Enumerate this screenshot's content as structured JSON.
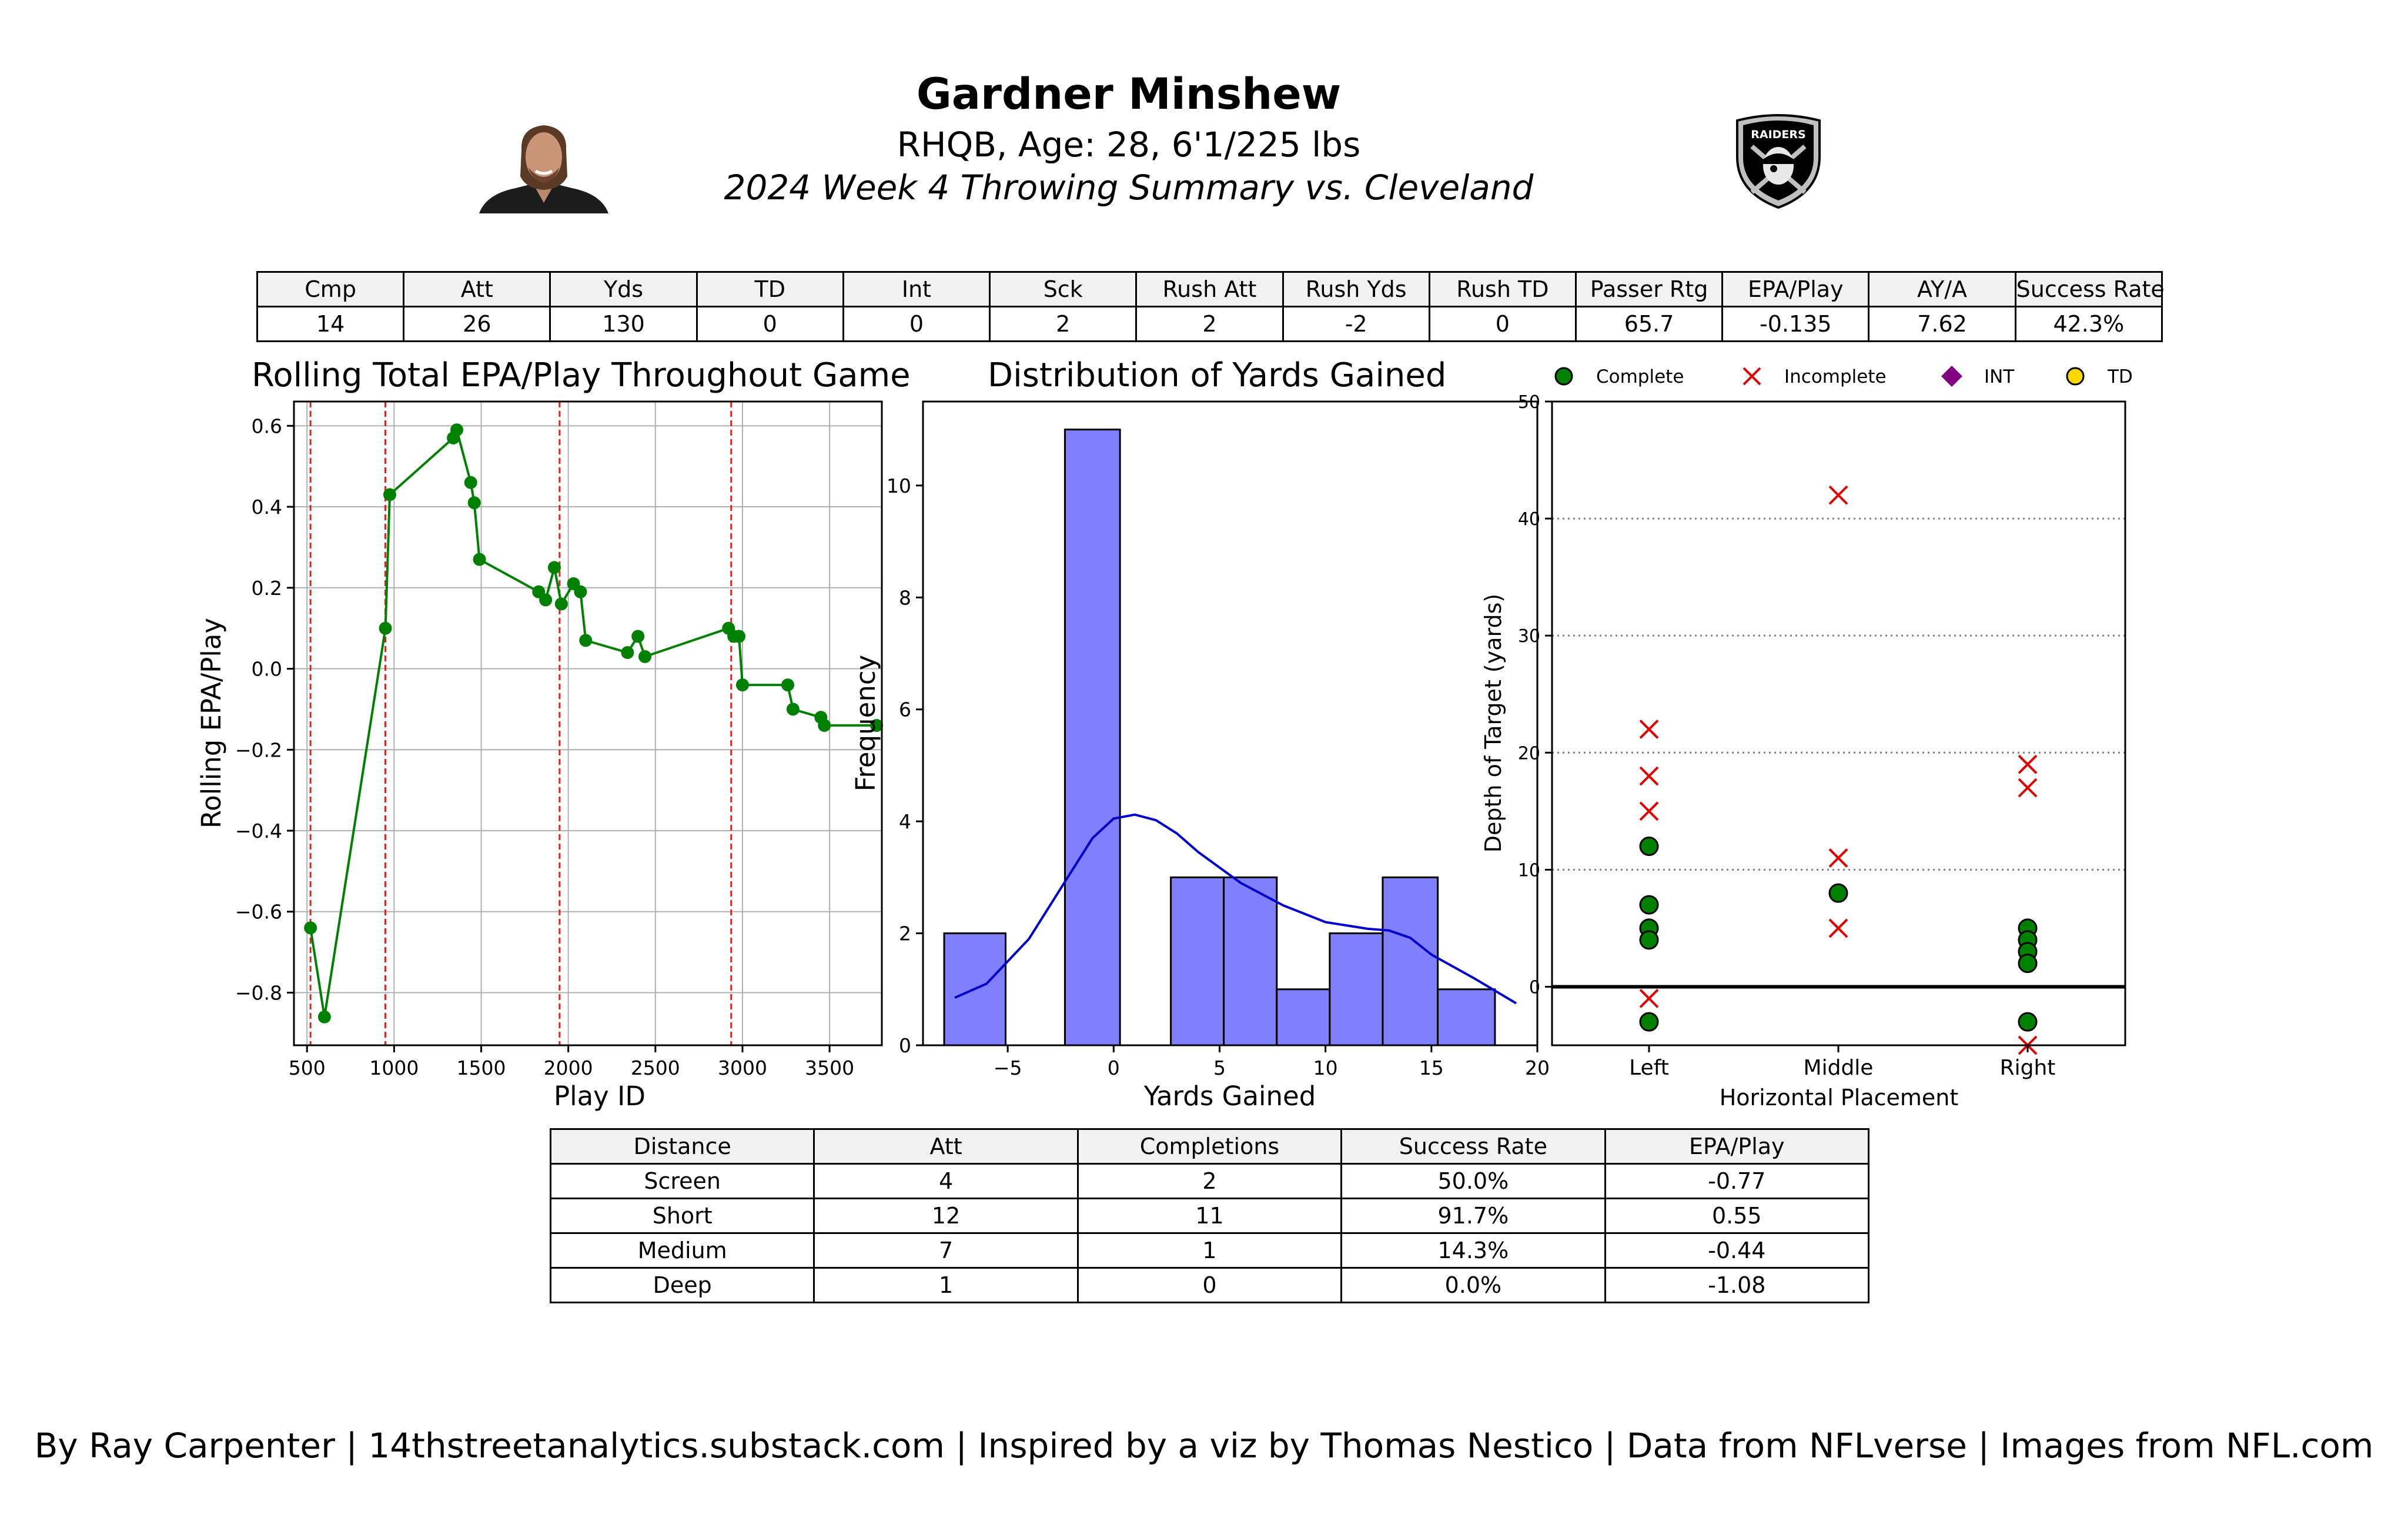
{
  "header": {
    "name": "Gardner Minshew",
    "subtitle": "RHQB, Age: 28, 6'1/225 lbs",
    "title": "2024 Week 4 Throwing Summary vs. Cleveland",
    "logo_text": "RAIDERS"
  },
  "summary_table": {
    "columns": [
      "Cmp",
      "Att",
      "Yds",
      "TD",
      "Int",
      "Sck",
      "Rush Att",
      "Rush Yds",
      "Rush TD",
      "Passer Rtg",
      "EPA/Play",
      "AY/A",
      "Success Rate"
    ],
    "values": [
      "14",
      "26",
      "130",
      "0",
      "0",
      "2",
      "2",
      "-2",
      "0",
      "65.7",
      "-0.135",
      "7.62",
      "42.3%"
    ]
  },
  "distance_table": {
    "columns": [
      "Distance",
      "Att",
      "Completions",
      "Success Rate",
      "EPA/Play"
    ],
    "rows": [
      [
        "Screen",
        "4",
        "2",
        "50.0%",
        "-0.77"
      ],
      [
        "Short",
        "12",
        "11",
        "91.7%",
        "0.55"
      ],
      [
        "Medium",
        "7",
        "1",
        "14.3%",
        "-0.44"
      ],
      [
        "Deep",
        "1",
        "0",
        "0.0%",
        "-1.08"
      ]
    ]
  },
  "chart_data": [
    {
      "type": "line",
      "title": "Rolling Total EPA/Play Throughout Game",
      "xlabel": "Play ID",
      "ylabel": "Rolling EPA/Play",
      "xlim": [
        425,
        3800
      ],
      "ylim": [
        -0.93,
        0.66
      ],
      "xticks": [
        500,
        1000,
        1500,
        2000,
        2500,
        3000,
        3500
      ],
      "yticks": [
        -0.8,
        -0.6,
        -0.4,
        -0.2,
        0.0,
        0.2,
        0.4,
        0.6
      ],
      "ytick_labels": [
        "−0.8",
        "−0.6",
        "−0.4",
        "−0.2",
        "0.0",
        "0.2",
        "0.4",
        "0.6"
      ],
      "grid": true,
      "color": "#008000",
      "quarter_lines": [
        520,
        950,
        1950,
        2935
      ],
      "quarter_line_color": "#d62728",
      "x": [
        520,
        600,
        950,
        975,
        1340,
        1360,
        1440,
        1460,
        1490,
        1830,
        1870,
        1920,
        1960,
        2030,
        2070,
        2100,
        2340,
        2400,
        2440,
        2920,
        2950,
        2980,
        3000,
        3260,
        3290,
        3450,
        3470,
        3770
      ],
      "y": [
        -0.64,
        -0.86,
        0.1,
        0.43,
        0.57,
        0.59,
        0.46,
        0.41,
        0.27,
        0.19,
        0.17,
        0.25,
        0.16,
        0.21,
        0.19,
        0.07,
        0.04,
        0.08,
        0.03,
        0.1,
        0.08,
        0.08,
        -0.04,
        -0.04,
        -0.1,
        -0.12,
        -0.14,
        -0.14
      ]
    },
    {
      "type": "histogram",
      "title": "Distribution of Yards Gained",
      "xlabel": "Yards Gained",
      "ylabel": "Frequency",
      "xlim": [
        -9,
        20
      ],
      "ylim": [
        0,
        11.5
      ],
      "xticks": [
        -5,
        0,
        5,
        10,
        15,
        20
      ],
      "xtick_labels": [
        "−5",
        "0",
        "5",
        "10",
        "15",
        "20"
      ],
      "yticks": [
        0,
        2,
        4,
        6,
        8,
        10
      ],
      "bar_color": "#8080ff",
      "kde_color": "#0000cc",
      "bins": [
        {
          "x0": -8,
          "x1": -5.1,
          "count": 2
        },
        {
          "x0": -5.1,
          "x1": -2.3,
          "count": 0
        },
        {
          "x0": -2.3,
          "x1": 0.3,
          "count": 11
        },
        {
          "x0": 0.3,
          "x1": 2.7,
          "count": 0
        },
        {
          "x0": 2.7,
          "x1": 5.2,
          "count": 3
        },
        {
          "x0": 5.2,
          "x1": 7.7,
          "count": 3
        },
        {
          "x0": 7.7,
          "x1": 10.2,
          "count": 1
        },
        {
          "x0": 10.2,
          "x1": 12.7,
          "count": 2
        },
        {
          "x0": 12.7,
          "x1": 15.3,
          "count": 3
        },
        {
          "x0": 15.3,
          "x1": 18.0,
          "count": 1
        }
      ],
      "kde_x": [
        -7.5,
        -6,
        -4,
        -2,
        -1,
        0,
        1,
        2,
        3,
        4,
        6,
        8,
        10,
        12,
        13,
        14,
        15,
        17,
        19
      ],
      "kde_y": [
        0.85,
        1.1,
        1.9,
        3.1,
        3.7,
        4.05,
        4.12,
        4.02,
        3.78,
        3.45,
        2.9,
        2.5,
        2.2,
        2.08,
        2.05,
        1.92,
        1.62,
        1.2,
        0.75
      ]
    },
    {
      "type": "scatter",
      "xlabel": "Horizontal Placement",
      "ylabel": "Depth of Target (yards)",
      "categories": [
        "Left",
        "Middle",
        "Right"
      ],
      "ylim": [
        -5,
        50
      ],
      "yticks": [
        0,
        10,
        20,
        30,
        40,
        50
      ],
      "legend": [
        "Complete",
        "Incomplete",
        "INT",
        "TD"
      ],
      "legend_placement": "top",
      "legend_colors": [
        "#008000",
        "#e00000",
        "#800080",
        "#ffd700"
      ],
      "complete": [
        {
          "cat": "Left",
          "y": 12
        },
        {
          "cat": "Left",
          "y": 7
        },
        {
          "cat": "Left",
          "y": 5
        },
        {
          "cat": "Left",
          "y": 4
        },
        {
          "cat": "Left",
          "y": -3
        },
        {
          "cat": "Middle",
          "y": 8
        },
        {
          "cat": "Right",
          "y": 5
        },
        {
          "cat": "Right",
          "y": 4
        },
        {
          "cat": "Right",
          "y": 3
        },
        {
          "cat": "Right",
          "y": 2
        },
        {
          "cat": "Right",
          "y": -3
        }
      ],
      "incomplete": [
        {
          "cat": "Left",
          "y": 22
        },
        {
          "cat": "Left",
          "y": 18
        },
        {
          "cat": "Left",
          "y": 15
        },
        {
          "cat": "Left",
          "y": -1
        },
        {
          "cat": "Middle",
          "y": 42
        },
        {
          "cat": "Middle",
          "y": 11
        },
        {
          "cat": "Middle",
          "y": 5
        },
        {
          "cat": "Right",
          "y": 19
        },
        {
          "cat": "Right",
          "y": 17
        },
        {
          "cat": "Right",
          "y": -5
        }
      ]
    }
  ],
  "footer": "By Ray Carpenter | 14thstreetanalytics.substack.com | Inspired by a viz by Thomas Nestico | Data from NFLverse | Images from NFL.com"
}
